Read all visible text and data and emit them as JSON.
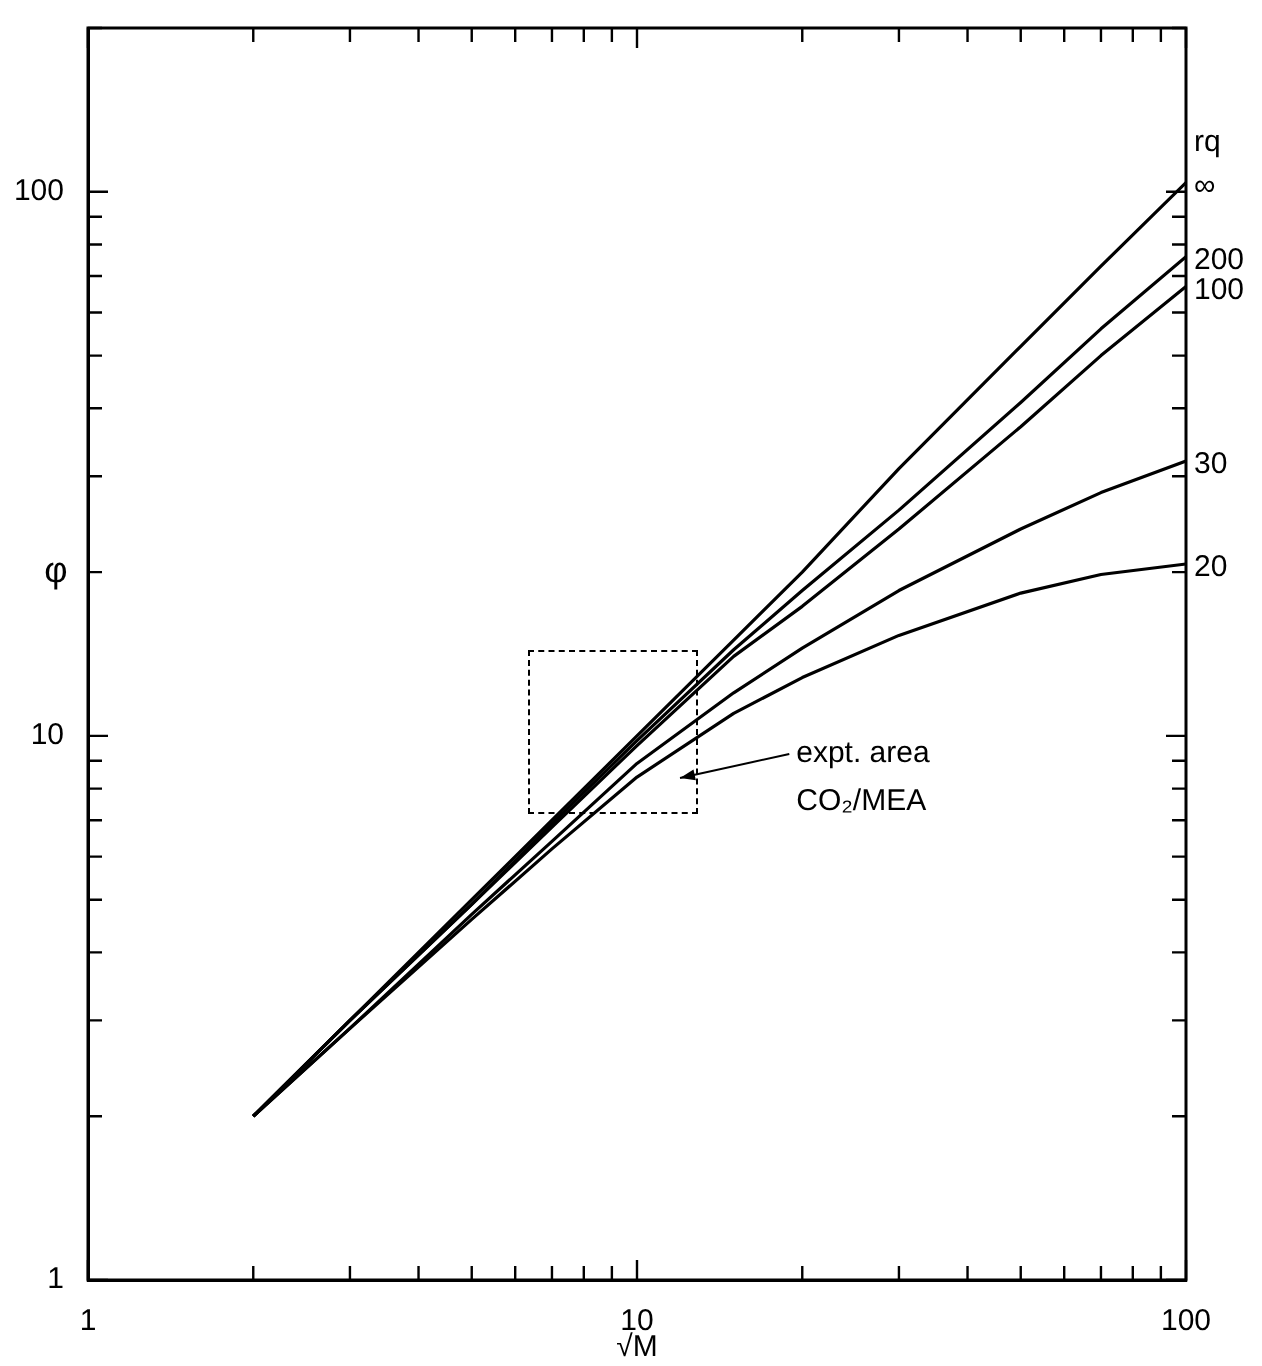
{
  "chart_data": {
    "type": "line",
    "xlabel": "√M",
    "ylabel": "φ",
    "legend_title": "rq",
    "log": "xy",
    "marker": "none",
    "xlim": [
      1,
      100
    ],
    "ylim": [
      1,
      200
    ],
    "xticks": [
      1,
      {
        "value": 2,
        "label": null
      },
      {
        "value": 3,
        "label": null
      },
      {
        "value": 4,
        "label": null
      },
      {
        "value": 5,
        "label": null
      },
      {
        "value": 6,
        "label": null
      },
      {
        "value": 7,
        "label": null
      },
      {
        "value": 8,
        "label": null
      },
      {
        "value": 9,
        "label": null
      },
      10,
      {
        "value": 20,
        "label": null
      },
      {
        "value": 30,
        "label": null
      },
      {
        "value": 40,
        "label": null
      },
      {
        "value": 50,
        "label": null
      },
      {
        "value": 60,
        "label": null
      },
      {
        "value": 70,
        "label": null
      },
      {
        "value": 80,
        "label": null
      },
      {
        "value": 90,
        "label": null
      },
      100
    ],
    "yticks": [
      1,
      {
        "value": 2,
        "label": null
      },
      {
        "value": 3,
        "label": null
      },
      {
        "value": 4,
        "label": null
      },
      {
        "value": 5,
        "label": null
      },
      {
        "value": 6,
        "label": null
      },
      {
        "value": 7,
        "label": null
      },
      {
        "value": 8,
        "label": null
      },
      {
        "value": 9,
        "label": null
      },
      10,
      {
        "value": 20,
        "label": null
      },
      {
        "value": 30,
        "label": null
      },
      {
        "value": 40,
        "label": null
      },
      {
        "value": 50,
        "label": null
      },
      {
        "value": 60,
        "label": null
      },
      {
        "value": 70,
        "label": null
      },
      {
        "value": 80,
        "label": null
      },
      {
        "value": 90,
        "label": null
      },
      100,
      {
        "value": 200,
        "label": null
      }
    ],
    "x": [
      2,
      3,
      5,
      7,
      10,
      15,
      20,
      30,
      50,
      70,
      100
    ],
    "series": [
      {
        "name": "∞",
        "color": "#000000",
        "values": [
          2,
          3,
          5,
          7,
          10,
          15,
          20,
          31,
          52,
          73,
          104
        ]
      },
      {
        "name": "200",
        "color": "#000000",
        "values": [
          2,
          3,
          4.9,
          6.9,
          9.8,
          14.4,
          18.5,
          26,
          41,
          56,
          76
        ]
      },
      {
        "name": "100",
        "color": "#000000",
        "values": [
          2,
          3,
          4.9,
          6.8,
          9.6,
          14,
          17.3,
          24,
          37,
          50,
          67
        ]
      },
      {
        "name": "30",
        "color": "#000000",
        "values": [
          2,
          2.9,
          4.7,
          6.4,
          8.9,
          12,
          14.5,
          18.5,
          24,
          28,
          32
        ]
      },
      {
        "name": "20",
        "color": "#000000",
        "values": [
          2,
          2.9,
          4.6,
          6.2,
          8.4,
          11,
          12.8,
          15.3,
          18.3,
          19.8,
          20.7
        ]
      }
    ],
    "legend": "right",
    "annotations": [
      "expt. area\nCO₂/MEA"
    ]
  }
}
